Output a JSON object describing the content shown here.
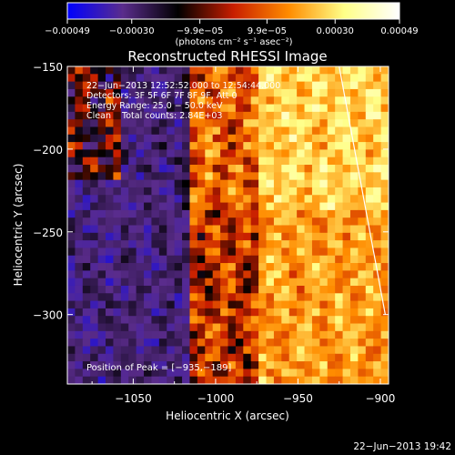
{
  "chart_data": {
    "type": "heatmap",
    "title": "Reconstructed RHESSI Image",
    "xlabel": "Heliocentric X (arcsec)",
    "ylabel": "Heliocentric Y (arcsec)",
    "xlim": [
      -1090,
      -895
    ],
    "ylim": [
      -342,
      -150
    ],
    "xticks": [
      -1050,
      -1000,
      -950,
      -900
    ],
    "xtick_labels": [
      "−1050",
      "−1000",
      "−950",
      "−900"
    ],
    "yticks": [
      -150,
      -200,
      -250,
      -300
    ],
    "ytick_labels": [
      "−150",
      "−200",
      "−250",
      "−300"
    ],
    "colorbar": {
      "range": [
        -0.00049,
        0.00049
      ],
      "ticks": [
        -0.00049,
        -0.0003,
        -9.9e-05,
        9.9e-05,
        0.0003,
        0.00049
      ],
      "tick_labels": [
        "−0.00049",
        "−0.00030",
        "−9.9e−05",
        "9.9e−05",
        "0.00030",
        "0.00049"
      ],
      "units": "(photons cm⁻² s⁻¹ asec⁻²)",
      "colors": [
        "#0000ff",
        "#5a2c8c",
        "#000000",
        "#c81e00",
        "#ff8c00",
        "#ffff88",
        "#ffffff"
      ]
    },
    "info_lines": [
      "22−Jun−2013 12:52:52.000 to 12:54:44.000",
      "Detectors: 3F 5F 6F 7F 8F 9F, Att 0",
      "Energy Range: 25.0 − 50.0 keV",
      "Clean    Total counts: 2.84E+03"
    ],
    "peak_label": "Position of Peak = [−935,−189]",
    "peak": [
      -935,
      -189
    ],
    "limb_line": [
      [
        -925,
        -150
      ],
      [
        -897,
        -300
      ]
    ]
  },
  "footer": {
    "timestamp": "22−Jun−2013 19:42"
  }
}
